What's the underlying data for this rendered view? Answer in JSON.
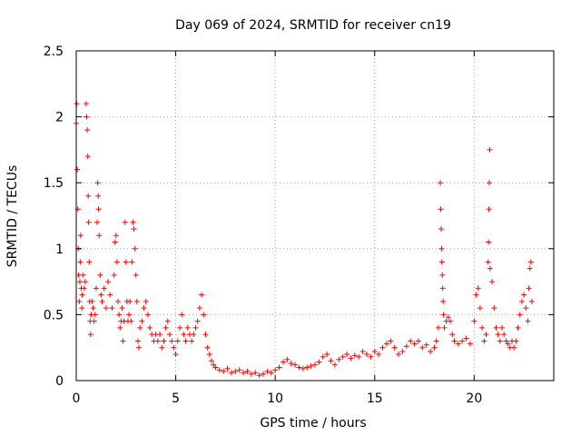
{
  "chart_data": {
    "type": "scatter",
    "title": "Day 069 of 2024, SRMTID for receiver cn19",
    "xlabel": "GPS time / hours",
    "ylabel": "SRMTID / TECUs",
    "xlim": [
      0,
      24
    ],
    "ylim": [
      0,
      2.5
    ],
    "x_ticks": [
      0,
      5,
      10,
      15,
      20
    ],
    "x_tick_labels": [
      "0",
      "5",
      "10",
      "15",
      "20"
    ],
    "y_ticks": [
      0,
      0.5,
      1,
      1.5,
      2,
      2.5
    ],
    "y_tick_labels": [
      "0",
      "0.5",
      "1",
      "1.5",
      "2",
      "2.5"
    ],
    "grid": true,
    "marker": "+",
    "series": [
      {
        "name": "SRMTID cn19",
        "color": "#ff0000",
        "points": [
          [
            0.0,
            1.95
          ],
          [
            0.02,
            2.1
          ],
          [
            0.05,
            1.6
          ],
          [
            0.08,
            1.3
          ],
          [
            0.1,
            1.0
          ],
          [
            0.12,
            0.8
          ],
          [
            0.15,
            0.6
          ],
          [
            0.18,
            0.75
          ],
          [
            0.2,
            0.9
          ],
          [
            0.22,
            1.1
          ],
          [
            0.25,
            0.7
          ],
          [
            0.28,
            0.55
          ],
          [
            0.3,
            0.65
          ],
          [
            0.35,
            0.8
          ],
          [
            0.4,
            0.7
          ],
          [
            0.45,
            0.75
          ],
          [
            0.5,
            2.1
          ],
          [
            0.52,
            2.0
          ],
          [
            0.55,
            1.9
          ],
          [
            0.58,
            1.7
          ],
          [
            0.6,
            1.4
          ],
          [
            0.62,
            1.2
          ],
          [
            0.65,
            0.9
          ],
          [
            0.68,
            0.6
          ],
          [
            0.7,
            0.45
          ],
          [
            0.72,
            0.35
          ],
          [
            0.75,
            0.5
          ],
          [
            0.8,
            0.6
          ],
          [
            0.85,
            0.55
          ],
          [
            0.9,
            0.45
          ],
          [
            0.95,
            0.5
          ],
          [
            1.0,
            0.7
          ],
          [
            1.05,
            1.2
          ],
          [
            1.08,
            1.5
          ],
          [
            1.1,
            1.4
          ],
          [
            1.12,
            1.3
          ],
          [
            1.15,
            1.1
          ],
          [
            1.2,
            0.8
          ],
          [
            1.25,
            0.65
          ],
          [
            1.3,
            0.6
          ],
          [
            1.4,
            0.7
          ],
          [
            1.5,
            0.55
          ],
          [
            1.6,
            0.75
          ],
          [
            1.7,
            0.65
          ],
          [
            1.8,
            0.55
          ],
          [
            1.9,
            0.8
          ],
          [
            1.95,
            1.05
          ],
          [
            2.0,
            1.1
          ],
          [
            2.05,
            0.9
          ],
          [
            2.1,
            0.6
          ],
          [
            2.15,
            0.5
          ],
          [
            2.2,
            0.4
          ],
          [
            2.25,
            0.45
          ],
          [
            2.3,
            0.55
          ],
          [
            2.35,
            0.3
          ],
          [
            2.4,
            0.45
          ],
          [
            2.45,
            1.2
          ],
          [
            2.5,
            0.9
          ],
          [
            2.55,
            0.6
          ],
          [
            2.6,
            0.45
          ],
          [
            2.65,
            0.5
          ],
          [
            2.7,
            0.6
          ],
          [
            2.75,
            0.45
          ],
          [
            2.8,
            0.9
          ],
          [
            2.85,
            1.2
          ],
          [
            2.9,
            1.15
          ],
          [
            2.95,
            1.0
          ],
          [
            3.0,
            0.8
          ],
          [
            3.05,
            0.6
          ],
          [
            3.1,
            0.3
          ],
          [
            3.15,
            0.25
          ],
          [
            3.2,
            0.4
          ],
          [
            3.3,
            0.45
          ],
          [
            3.4,
            0.55
          ],
          [
            3.5,
            0.6
          ],
          [
            3.6,
            0.5
          ],
          [
            3.7,
            0.4
          ],
          [
            3.8,
            0.35
          ],
          [
            3.9,
            0.3
          ],
          [
            4.0,
            0.35
          ],
          [
            4.1,
            0.3
          ],
          [
            4.2,
            0.35
          ],
          [
            4.3,
            0.25
          ],
          [
            4.4,
            0.3
          ],
          [
            4.5,
            0.4
          ],
          [
            4.6,
            0.45
          ],
          [
            4.7,
            0.35
          ],
          [
            4.8,
            0.3
          ],
          [
            4.9,
            0.25
          ],
          [
            5.0,
            0.2
          ],
          [
            5.1,
            0.3
          ],
          [
            5.2,
            0.4
          ],
          [
            5.3,
            0.5
          ],
          [
            5.4,
            0.35
          ],
          [
            5.5,
            0.3
          ],
          [
            5.6,
            0.4
          ],
          [
            5.7,
            0.35
          ],
          [
            5.8,
            0.3
          ],
          [
            5.9,
            0.35
          ],
          [
            6.0,
            0.4
          ],
          [
            6.1,
            0.45
          ],
          [
            6.2,
            0.55
          ],
          [
            6.3,
            0.65
          ],
          [
            6.4,
            0.5
          ],
          [
            6.5,
            0.35
          ],
          [
            6.6,
            0.25
          ],
          [
            6.7,
            0.2
          ],
          [
            6.8,
            0.15
          ],
          [
            6.9,
            0.12
          ],
          [
            7.0,
            0.1
          ],
          [
            7.2,
            0.08
          ],
          [
            7.4,
            0.07
          ],
          [
            7.6,
            0.09
          ],
          [
            7.8,
            0.06
          ],
          [
            8.0,
            0.07
          ],
          [
            8.2,
            0.08
          ],
          [
            8.4,
            0.06
          ],
          [
            8.6,
            0.07
          ],
          [
            8.8,
            0.05
          ],
          [
            9.0,
            0.06
          ],
          [
            9.2,
            0.04
          ],
          [
            9.4,
            0.05
          ],
          [
            9.6,
            0.07
          ],
          [
            9.8,
            0.06
          ],
          [
            10.0,
            0.08
          ],
          [
            10.2,
            0.1
          ],
          [
            10.4,
            0.14
          ],
          [
            10.6,
            0.16
          ],
          [
            10.8,
            0.13
          ],
          [
            11.0,
            0.12
          ],
          [
            11.2,
            0.1
          ],
          [
            11.4,
            0.09
          ],
          [
            11.6,
            0.1
          ],
          [
            11.8,
            0.11
          ],
          [
            12.0,
            0.12
          ],
          [
            12.2,
            0.14
          ],
          [
            12.4,
            0.18
          ],
          [
            12.6,
            0.2
          ],
          [
            12.8,
            0.15
          ],
          [
            13.0,
            0.12
          ],
          [
            13.2,
            0.16
          ],
          [
            13.4,
            0.18
          ],
          [
            13.6,
            0.2
          ],
          [
            13.8,
            0.17
          ],
          [
            14.0,
            0.19
          ],
          [
            14.2,
            0.18
          ],
          [
            14.4,
            0.22
          ],
          [
            14.6,
            0.2
          ],
          [
            14.8,
            0.18
          ],
          [
            15.0,
            0.22
          ],
          [
            15.2,
            0.2
          ],
          [
            15.4,
            0.25
          ],
          [
            15.6,
            0.28
          ],
          [
            15.8,
            0.3
          ],
          [
            16.0,
            0.25
          ],
          [
            16.2,
            0.2
          ],
          [
            16.4,
            0.22
          ],
          [
            16.6,
            0.26
          ],
          [
            16.8,
            0.3
          ],
          [
            17.0,
            0.28
          ],
          [
            17.2,
            0.3
          ],
          [
            17.4,
            0.25
          ],
          [
            17.6,
            0.27
          ],
          [
            17.8,
            0.22
          ],
          [
            18.0,
            0.25
          ],
          [
            18.1,
            0.3
          ],
          [
            18.2,
            0.4
          ],
          [
            18.3,
            1.5
          ],
          [
            18.32,
            1.3
          ],
          [
            18.34,
            1.15
          ],
          [
            18.36,
            1.0
          ],
          [
            18.38,
            0.9
          ],
          [
            18.4,
            0.8
          ],
          [
            18.42,
            0.7
          ],
          [
            18.44,
            0.6
          ],
          [
            18.46,
            0.5
          ],
          [
            18.5,
            0.4
          ],
          [
            18.6,
            0.45
          ],
          [
            18.7,
            0.48
          ],
          [
            18.8,
            0.45
          ],
          [
            18.9,
            0.35
          ],
          [
            19.0,
            0.3
          ],
          [
            19.2,
            0.28
          ],
          [
            19.4,
            0.3
          ],
          [
            19.6,
            0.32
          ],
          [
            19.8,
            0.28
          ],
          [
            20.0,
            0.45
          ],
          [
            20.1,
            0.65
          ],
          [
            20.2,
            0.7
          ],
          [
            20.3,
            0.55
          ],
          [
            20.4,
            0.4
          ],
          [
            20.5,
            0.3
          ],
          [
            20.6,
            0.35
          ],
          [
            20.7,
            0.9
          ],
          [
            20.72,
            1.05
          ],
          [
            20.74,
            1.3
          ],
          [
            20.76,
            1.5
          ],
          [
            20.78,
            1.75
          ],
          [
            20.8,
            0.85
          ],
          [
            20.9,
            0.75
          ],
          [
            21.0,
            0.55
          ],
          [
            21.1,
            0.4
          ],
          [
            21.2,
            0.35
          ],
          [
            21.3,
            0.3
          ],
          [
            21.4,
            0.4
          ],
          [
            21.5,
            0.35
          ],
          [
            21.6,
            0.3
          ],
          [
            21.7,
            0.28
          ],
          [
            21.8,
            0.25
          ],
          [
            21.9,
            0.3
          ],
          [
            22.0,
            0.25
          ],
          [
            22.1,
            0.3
          ],
          [
            22.2,
            0.4
          ],
          [
            22.3,
            0.5
          ],
          [
            22.4,
            0.6
          ],
          [
            22.5,
            0.65
          ],
          [
            22.6,
            0.55
          ],
          [
            22.7,
            0.45
          ],
          [
            22.75,
            0.7
          ],
          [
            22.8,
            0.85
          ],
          [
            22.85,
            0.9
          ],
          [
            22.9,
            0.6
          ]
        ]
      }
    ]
  }
}
